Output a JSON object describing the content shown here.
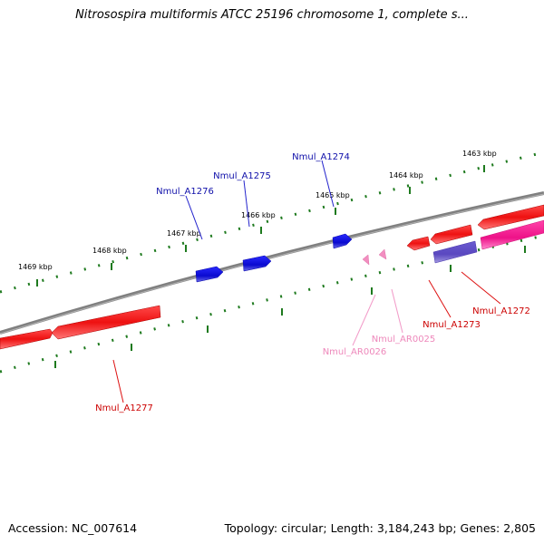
{
  "title": "Nitrosospira multiformis ATCC 25196 chromosome 1, complete s...",
  "footer": {
    "accession": "Accession: NC_007614",
    "summary": "Topology: circular; Length: 3,184,243 bp; Genes: 2,805"
  },
  "colors": {
    "backbone": "#7a7a7a",
    "tick": "#1e7a1e",
    "forward_gene": "#1010dd",
    "reverse_gene": "#ee1111",
    "rna_gene": "#f2a0c8",
    "cds_magenta": "#ee2288",
    "cds_purple": "#7766cc"
  },
  "scale": {
    "unit": "kbp",
    "labels": [
      "1463 kbp",
      "1464 kbp",
      "1465 kbp",
      "1466 kbp",
      "1467 kbp",
      "1468 kbp",
      "1469 kbp"
    ]
  },
  "genes": [
    {
      "name": "Nmul_A1272",
      "strand": "reverse",
      "color": "#cc0000"
    },
    {
      "name": "Nmul_A1273",
      "strand": "reverse",
      "color": "#cc0000"
    },
    {
      "name": "Nmul_A1274",
      "strand": "forward",
      "color": "#1010aa"
    },
    {
      "name": "Nmul_A1275",
      "strand": "forward",
      "color": "#1010aa"
    },
    {
      "name": "Nmul_A1276",
      "strand": "forward",
      "color": "#1010aa"
    },
    {
      "name": "Nmul_A1277",
      "strand": "reverse",
      "color": "#cc0000"
    },
    {
      "name": "Nmul_AR0025",
      "strand": "reverse",
      "color": "#ee88bb"
    },
    {
      "name": "Nmul_AR0026",
      "strand": "reverse",
      "color": "#ee88bb"
    }
  ]
}
